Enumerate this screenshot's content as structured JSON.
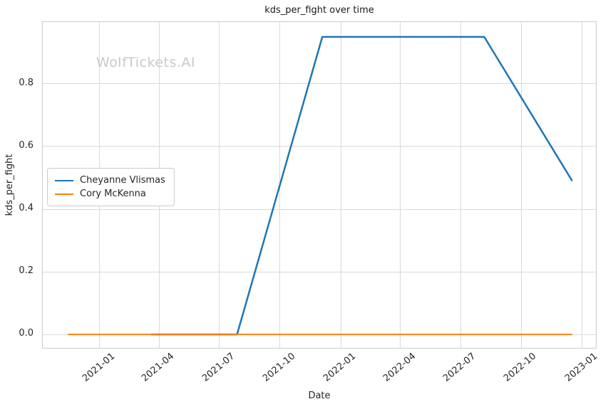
{
  "watermark": "WolfTickets.AI",
  "chart_data": {
    "type": "line",
    "title": "kds_per_fight over time",
    "xlabel": "Date",
    "ylabel": "kds_per_fight",
    "grid": true,
    "legend_position": "center-left",
    "background": "#ffffff",
    "grid_color": "#d9d9d9",
    "spine_color": "#cccccc",
    "xlim": [
      "2020-10-07",
      "2023-01-24"
    ],
    "ylim": [
      -0.0475,
      0.9975
    ],
    "x_ticks": [
      "2021-01-01",
      "2021-04-01",
      "2021-07-01",
      "2021-10-01",
      "2022-01-01",
      "2022-04-01",
      "2022-07-01",
      "2022-10-01",
      "2023-01-01"
    ],
    "x_tick_labels": [
      "2021-01",
      "2021-04",
      "2021-07",
      "2021-10",
      "2022-01",
      "2022-04",
      "2022-07",
      "2022-10",
      "2023-01"
    ],
    "y_ticks": [
      0.0,
      0.2,
      0.4,
      0.6,
      0.8
    ],
    "y_tick_labels": [
      "0.0",
      "0.2",
      "0.4",
      "0.6",
      "0.8"
    ],
    "series": [
      {
        "name": "Cheyanne Vlismas",
        "color": "#1f77b4",
        "x": [
          "2021-03-20",
          "2021-07-28",
          "2021-12-04",
          "2022-08-06",
          "2022-12-17"
        ],
        "y": [
          0.0,
          0.0,
          0.95,
          0.95,
          0.49
        ]
      },
      {
        "name": "Cory McKenna",
        "color": "#ff7f0e",
        "x": [
          "2020-11-14",
          "2022-12-17"
        ],
        "y": [
          0.0,
          0.0
        ]
      }
    ]
  }
}
